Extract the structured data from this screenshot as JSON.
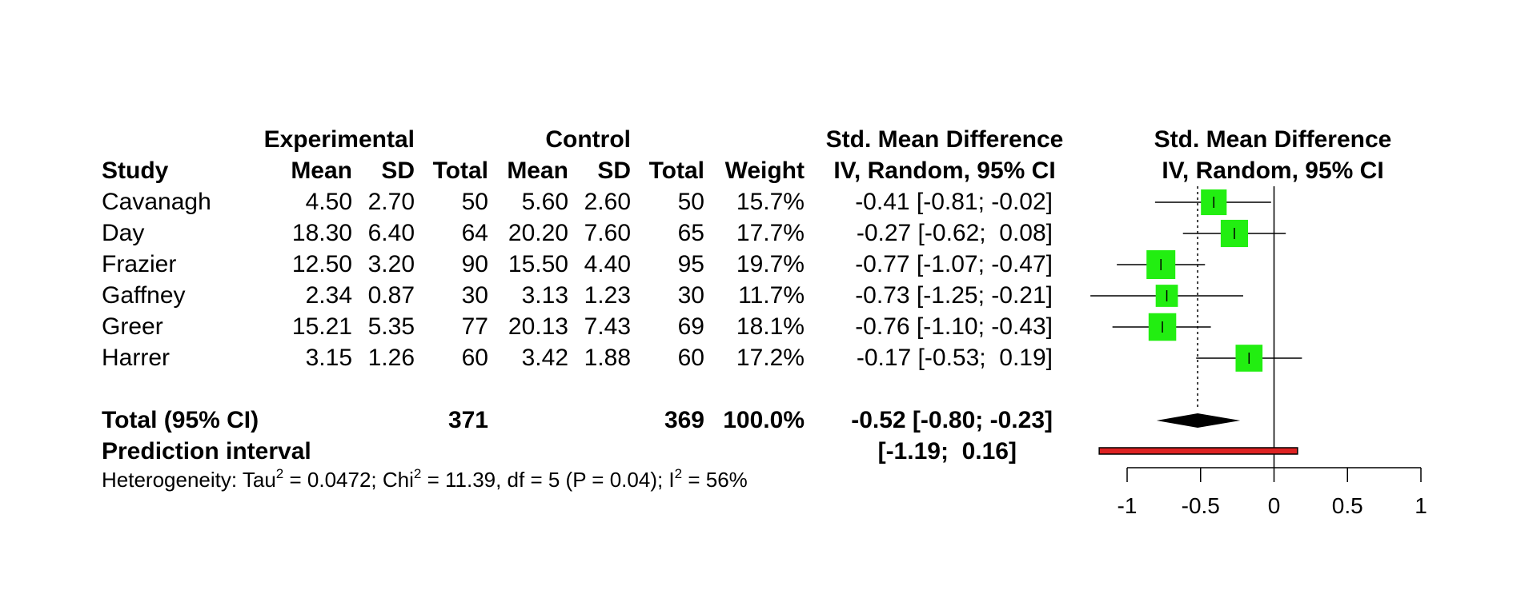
{
  "headers": {
    "experimental": "Experimental",
    "control": "Control",
    "smd_table": "Std. Mean Difference",
    "smd_table_sub": "IV, Random, 95% CI",
    "smd_plot": "Std. Mean Difference",
    "smd_plot_sub": "IV, Random, 95% CI",
    "study": "Study",
    "exp_mean": "Mean",
    "exp_sd": "SD",
    "exp_total": "Total",
    "ctl_mean": "Mean",
    "ctl_sd": "SD",
    "ctl_total": "Total",
    "weight": "Weight"
  },
  "studies": [
    {
      "name": "Cavanagh",
      "exp_mean": "4.50",
      "exp_sd": "2.70",
      "exp_total": "50",
      "ctl_mean": "5.60",
      "ctl_sd": "2.60",
      "ctl_total": "50",
      "weight": "15.7%",
      "smd_text": "-0.41 [-0.81; -0.02]"
    },
    {
      "name": "Day",
      "exp_mean": "18.30",
      "exp_sd": "6.40",
      "exp_total": "64",
      "ctl_mean": "20.20",
      "ctl_sd": "7.60",
      "ctl_total": "65",
      "weight": "17.7%",
      "smd_text": "-0.27 [-0.62;  0.08]"
    },
    {
      "name": "Frazier",
      "exp_mean": "12.50",
      "exp_sd": "3.20",
      "exp_total": "90",
      "ctl_mean": "15.50",
      "ctl_sd": "4.40",
      "ctl_total": "95",
      "weight": "19.7%",
      "smd_text": "-0.77 [-1.07; -0.47]"
    },
    {
      "name": "Gaffney",
      "exp_mean": "2.34",
      "exp_sd": "0.87",
      "exp_total": "30",
      "ctl_mean": "3.13",
      "ctl_sd": "1.23",
      "ctl_total": "30",
      "weight": "11.7%",
      "smd_text": "-0.73 [-1.25; -0.21]"
    },
    {
      "name": "Greer",
      "exp_mean": "15.21",
      "exp_sd": "5.35",
      "exp_total": "77",
      "ctl_mean": "20.13",
      "ctl_sd": "7.43",
      "ctl_total": "69",
      "weight": "18.1%",
      "smd_text": "-0.76 [-1.10; -0.43]"
    },
    {
      "name": "Harrer",
      "exp_mean": "3.15",
      "exp_sd": "1.26",
      "exp_total": "60",
      "ctl_mean": "3.42",
      "ctl_sd": "1.88",
      "ctl_total": "60",
      "weight": "17.2%",
      "smd_text": "-0.17 [-0.53;  0.19]"
    }
  ],
  "total": {
    "label": "Total (95% CI)",
    "exp_total": "371",
    "ctl_total": "369",
    "weight": "100.0%",
    "smd_text": "-0.52 [-0.80; -0.23]"
  },
  "prediction": {
    "label": "Prediction interval",
    "text": "[-1.19;  0.16]"
  },
  "heterogeneity": {
    "tau_label": "Heterogeneity: Tau",
    "tau_exp": "2",
    "tau_value": " = 0.0472; Chi",
    "chi_exp": "2",
    "chi_value": " = 11.39, df = 5 (P = 0.04); I",
    "i_exp": "2",
    "i_value": " = 56%"
  },
  "chart_data": {
    "type": "forest",
    "title": "Std. Mean Difference IV, Random, 95% CI",
    "xlim": [
      -1,
      1
    ],
    "ticks": [
      -1,
      -0.5,
      0,
      0.5,
      1
    ],
    "tick_labels": [
      "-1",
      "-0.5",
      "0",
      "0.5",
      "1"
    ],
    "null_value": 0,
    "summary_reference": -0.52,
    "studies": [
      {
        "name": "Cavanagh",
        "smd": -0.41,
        "lower": -0.81,
        "upper": -0.02,
        "weight": 15.7
      },
      {
        "name": "Day",
        "smd": -0.27,
        "lower": -0.62,
        "upper": 0.08,
        "weight": 17.7
      },
      {
        "name": "Frazier",
        "smd": -0.77,
        "lower": -1.07,
        "upper": -0.47,
        "weight": 19.7
      },
      {
        "name": "Gaffney",
        "smd": -0.73,
        "lower": -1.25,
        "upper": -0.21,
        "weight": 11.7
      },
      {
        "name": "Greer",
        "smd": -0.76,
        "lower": -1.1,
        "upper": -0.43,
        "weight": 18.1
      },
      {
        "name": "Harrer",
        "smd": -0.17,
        "lower": -0.53,
        "upper": 0.19,
        "weight": 17.2
      }
    ],
    "pooled": {
      "smd": -0.52,
      "lower": -0.8,
      "upper": -0.23
    },
    "prediction_interval": {
      "lower": -1.19,
      "upper": 0.16
    },
    "colors": {
      "study_box": "#22ee11",
      "diamond": "#000000",
      "prediction_bar": "#dd2222"
    }
  }
}
